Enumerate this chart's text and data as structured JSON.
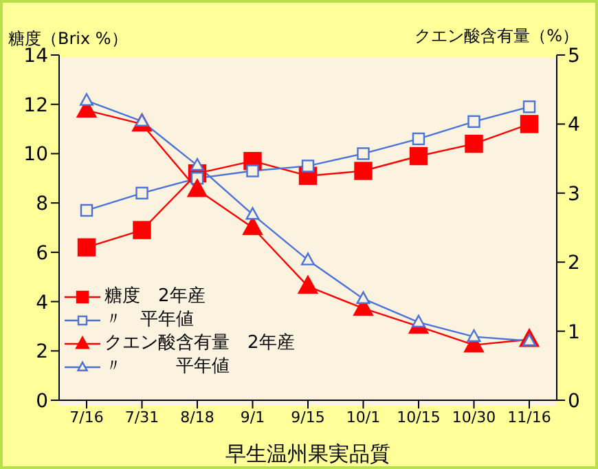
{
  "chart_data": {
    "type": "line",
    "xlabel": "早生温州果実品質",
    "ylabel": "糖度（Brix %）",
    "y2label": "クエン酸含有量（%）",
    "categories": [
      "7/16",
      "7/31",
      "8/18",
      "9/1",
      "9/15",
      "10/1",
      "10/15",
      "10/30",
      "11/16"
    ],
    "ylim": [
      0,
      14
    ],
    "yticks": [
      0,
      2,
      4,
      6,
      8,
      10,
      12,
      14
    ],
    "y2lim": [
      0,
      5
    ],
    "y2ticks": [
      0,
      1,
      2,
      3,
      4,
      5
    ],
    "grid": false,
    "legend": "bottom left",
    "line_style": "solid",
    "series": [
      {
        "name": "糖度　2年産",
        "color": "#ff0000",
        "marker": "square",
        "values": [
          6.2,
          6.9,
          9.2,
          9.7,
          9.1,
          9.3,
          9.9,
          10.4,
          11.2
        ]
      },
      {
        "name": "〃　平年値",
        "color": "#4a72d8",
        "marker": "square",
        "values": [
          7.7,
          8.4,
          9.0,
          9.3,
          9.5,
          10.0,
          10.6,
          11.3,
          11.9
        ]
      },
      {
        "name": "クエン酸含有量　2年産",
        "color": "#ff0000",
        "marker": "triangle",
        "axis": "y2",
        "values": [
          4.2,
          4.0,
          3.05,
          2.5,
          1.65,
          1.33,
          1.07,
          0.8,
          0.88
        ]
      },
      {
        "name": "〃　　　平年値",
        "color": "#4a72d8",
        "marker": "triangle",
        "axis": "y2",
        "values": [
          4.34,
          4.04,
          3.4,
          2.69,
          2.03,
          1.47,
          1.13,
          0.92,
          0.86
        ]
      }
    ]
  }
}
